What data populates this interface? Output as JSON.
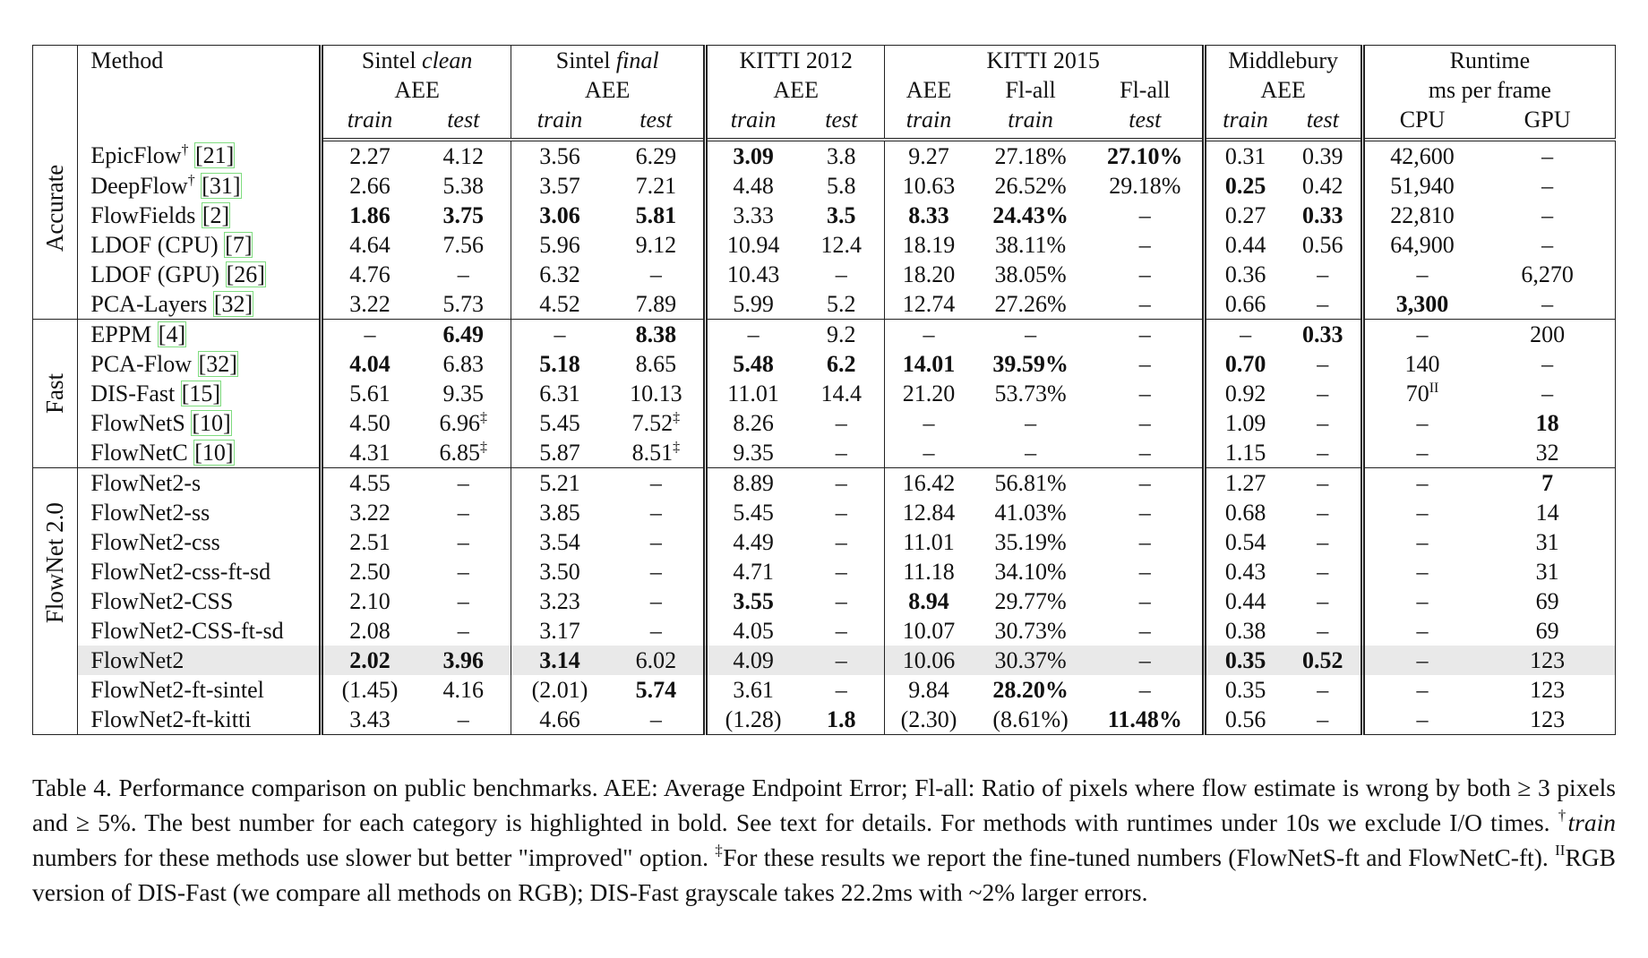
{
  "header": {
    "method": "Method",
    "sintel_clean_a": "Sintel ",
    "sintel_clean_b": "clean",
    "sintel_final_a": "Sintel ",
    "sintel_final_b": "final",
    "kitti2012": "KITTI 2012",
    "kitti2015": "KITTI 2015",
    "middlebury": "Middlebury",
    "runtime": "Runtime",
    "aee": "AEE",
    "flall": "Fl-all",
    "ms_per_frame": "ms per frame",
    "train": "train",
    "test": "test",
    "cpu": "CPU",
    "gpu": "GPU"
  },
  "groups": [
    {
      "label": "Accurate",
      "rows": [
        {
          "method": "EpicFlow",
          "sup": "†",
          "cite": "[21]",
          "cells": [
            "2.27",
            "4.12",
            "3.56",
            "6.29",
            "3.09",
            "3.8",
            "9.27",
            "27.18%",
            "27.10%",
            "0.31",
            "0.39",
            "42,600",
            "–"
          ]
        },
        {
          "method": "DeepFlow",
          "sup": "†",
          "cite": "[31]",
          "cells": [
            "2.66",
            "5.38",
            "3.57",
            "7.21",
            "4.48",
            "5.8",
            "10.63",
            "26.52%",
            "29.18%",
            "0.25",
            "0.42",
            "51,940",
            "–"
          ]
        },
        {
          "method": "FlowFields",
          "sup": "",
          "cite": "[2]",
          "cells": [
            "1.86",
            "3.75",
            "3.06",
            "5.81",
            "3.33",
            "3.5",
            "8.33",
            "24.43%",
            "–",
            "0.27",
            "0.33",
            "22,810",
            "–"
          ]
        },
        {
          "method": "LDOF (CPU)",
          "sup": "",
          "cite": "[7]",
          "cells": [
            "4.64",
            "7.56",
            "5.96",
            "9.12",
            "10.94",
            "12.4",
            "18.19",
            "38.11%",
            "–",
            "0.44",
            "0.56",
            "64,900",
            "–"
          ]
        },
        {
          "method": "LDOF (GPU)",
          "sup": "",
          "cite": "[26]",
          "cells": [
            "4.76",
            "–",
            "6.32",
            "–",
            "10.43",
            "–",
            "18.20",
            "38.05%",
            "–",
            "0.36",
            "–",
            "–",
            "6,270"
          ]
        },
        {
          "method": "PCA-Layers",
          "sup": "",
          "cite": "[32]",
          "cells": [
            "3.22",
            "5.73",
            "4.52",
            "7.89",
            "5.99",
            "5.2",
            "12.74",
            "27.26%",
            "–",
            "0.66",
            "–",
            "3,300",
            "–"
          ]
        }
      ]
    },
    {
      "label": "Fast",
      "rows": [
        {
          "method": "EPPM",
          "sup": "",
          "cite": "[4]",
          "cells": [
            "–",
            "6.49",
            "–",
            "8.38",
            "–",
            "9.2",
            "–",
            "–",
            "–",
            "–",
            "0.33",
            "–",
            "200"
          ]
        },
        {
          "method": "PCA-Flow",
          "sup": "",
          "cite": "[32]",
          "cells": [
            "4.04",
            "6.83",
            "5.18",
            "8.65",
            "5.48",
            "6.2",
            "14.01",
            "39.59%",
            "–",
            "0.70",
            "–",
            "140",
            "–"
          ]
        },
        {
          "method": "DIS-Fast",
          "sup": "",
          "cite": "[15]",
          "cells": [
            "5.61",
            "9.35",
            "6.31",
            "10.13",
            "11.01",
            "14.4",
            "21.20",
            "53.73%",
            "–",
            "0.92",
            "–",
            "70",
            "–"
          ]
        },
        {
          "method": "FlowNetS",
          "sup": "",
          "cite": "[10]",
          "cells": [
            "4.50",
            "6.96",
            "5.45",
            "7.52",
            "8.26",
            "–",
            "–",
            "–",
            "–",
            "1.09",
            "–",
            "–",
            "18"
          ]
        },
        {
          "method": "FlowNetC",
          "sup": "",
          "cite": "[10]",
          "cells": [
            "4.31",
            "6.85",
            "5.87",
            "8.51",
            "9.35",
            "–",
            "–",
            "–",
            "–",
            "1.15",
            "–",
            "–",
            "32"
          ]
        }
      ]
    },
    {
      "label": "FlowNet 2.0",
      "rows": [
        {
          "method": "FlowNet2-s",
          "sup": "",
          "cite": "",
          "cells": [
            "4.55",
            "–",
            "5.21",
            "–",
            "8.89",
            "–",
            "16.42",
            "56.81%",
            "–",
            "1.27",
            "–",
            "–",
            "7"
          ]
        },
        {
          "method": "FlowNet2-ss",
          "sup": "",
          "cite": "",
          "cells": [
            "3.22",
            "–",
            "3.85",
            "–",
            "5.45",
            "–",
            "12.84",
            "41.03%",
            "–",
            "0.68",
            "–",
            "–",
            "14"
          ]
        },
        {
          "method": "FlowNet2-css",
          "sup": "",
          "cite": "",
          "cells": [
            "2.51",
            "–",
            "3.54",
            "–",
            "4.49",
            "–",
            "11.01",
            "35.19%",
            "–",
            "0.54",
            "–",
            "–",
            "31"
          ]
        },
        {
          "method": "FlowNet2-css-ft-sd",
          "sup": "",
          "cite": "",
          "cells": [
            "2.50",
            "–",
            "3.50",
            "–",
            "4.71",
            "–",
            "11.18",
            "34.10%",
            "–",
            "0.43",
            "–",
            "–",
            "31"
          ]
        },
        {
          "method": "FlowNet2-CSS",
          "sup": "",
          "cite": "",
          "cells": [
            "2.10",
            "–",
            "3.23",
            "–",
            "3.55",
            "–",
            "8.94",
            "29.77%",
            "–",
            "0.44",
            "–",
            "–",
            "69"
          ]
        },
        {
          "method": "FlowNet2-CSS-ft-sd",
          "sup": "",
          "cite": "",
          "cells": [
            "2.08",
            "–",
            "3.17",
            "–",
            "4.05",
            "–",
            "10.07",
            "30.73%",
            "–",
            "0.38",
            "–",
            "–",
            "69"
          ]
        },
        {
          "method": "FlowNet2",
          "sup": "",
          "cite": "",
          "cells": [
            "2.02",
            "3.96",
            "3.14",
            "6.02",
            "4.09",
            "–",
            "10.06",
            "30.37%",
            "–",
            "0.35",
            "0.52",
            "–",
            "123"
          ]
        },
        {
          "method": "FlowNet2-ft-sintel",
          "sup": "",
          "cite": "",
          "cells": [
            "(1.45)",
            "4.16",
            "(2.01)",
            "5.74",
            "3.61",
            "–",
            "9.84",
            "28.20%",
            "–",
            "0.35",
            "–",
            "–",
            "123"
          ]
        },
        {
          "method": "FlowNet2-ft-kitti",
          "sup": "",
          "cite": "",
          "cells": [
            "3.43",
            "–",
            "4.66",
            "–",
            "(1.28)",
            "1.8",
            "(2.30)",
            "(8.61%)",
            "11.48%",
            "0.56",
            "–",
            "–",
            "123"
          ]
        }
      ]
    }
  ],
  "bold_cells": [
    [
      0,
      0,
      4
    ],
    [
      0,
      0,
      8
    ],
    [
      0,
      1,
      9
    ],
    [
      0,
      2,
      0
    ],
    [
      0,
      2,
      1
    ],
    [
      0,
      2,
      2
    ],
    [
      0,
      2,
      3
    ],
    [
      0,
      2,
      5
    ],
    [
      0,
      2,
      6
    ],
    [
      0,
      2,
      7
    ],
    [
      0,
      2,
      10
    ],
    [
      0,
      5,
      11
    ],
    [
      1,
      0,
      1
    ],
    [
      1,
      0,
      3
    ],
    [
      1,
      0,
      10
    ],
    [
      1,
      1,
      0
    ],
    [
      1,
      1,
      2
    ],
    [
      1,
      1,
      4
    ],
    [
      1,
      1,
      5
    ],
    [
      1,
      1,
      6
    ],
    [
      1,
      1,
      7
    ],
    [
      1,
      1,
      9
    ],
    [
      1,
      3,
      12
    ],
    [
      2,
      0,
      12
    ],
    [
      2,
      4,
      4
    ],
    [
      2,
      4,
      6
    ],
    [
      2,
      6,
      0
    ],
    [
      2,
      6,
      1
    ],
    [
      2,
      6,
      2
    ],
    [
      2,
      6,
      9
    ],
    [
      2,
      6,
      10
    ],
    [
      2,
      7,
      3
    ],
    [
      2,
      7,
      7
    ],
    [
      2,
      8,
      5
    ],
    [
      2,
      8,
      8
    ]
  ],
  "cell_sups": [
    [
      1,
      2,
      11,
      "II"
    ],
    [
      1,
      3,
      1,
      "‡"
    ],
    [
      1,
      3,
      3,
      "‡"
    ],
    [
      1,
      4,
      1,
      "‡"
    ],
    [
      1,
      4,
      3,
      "‡"
    ]
  ],
  "highlight_row": [
    2,
    6
  ],
  "caption": {
    "p1": "Table 4. Performance comparison on public benchmarks.  AEE: Average Endpoint Error; Fl-all:  Ratio of pixels where flow estimate is wrong by both ≥ 3 pixels and ≥ 5%.  The best number for each category is highlighted in bold.  See text for details.  For methods with runtimes under 10s we exclude I/O times. ",
    "dagger": "†",
    "train_word": "train",
    "p2": " numbers for these methods use slower but better \"improved\" option. ",
    "ddagger": "‡",
    "p3": "For these results we report the fine-tuned numbers (FlowNetS-ft and FlowNetC-ft). ",
    "ii": "II",
    "p4": "RGB version of DIS-Fast (we compare all methods on RGB); DIS-Fast grayscale takes 22.2ms with ~2% larger errors."
  }
}
